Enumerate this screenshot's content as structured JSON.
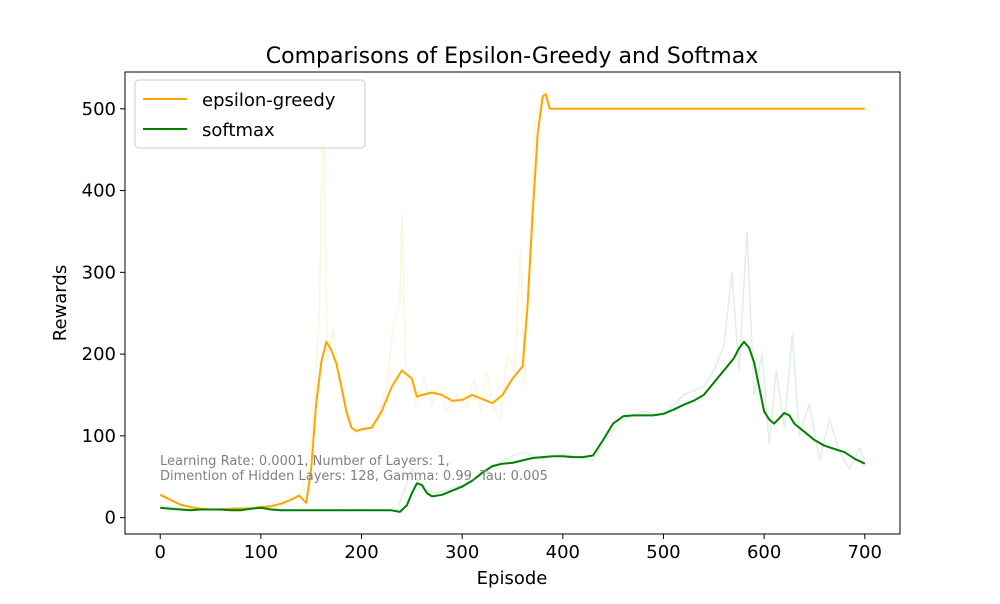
{
  "figure": {
    "title": "Comparisons of Epsilon-Greedy and Softmax",
    "annotation_line1": "Learning Rate: 0.0001, Number of Layers: 1,",
    "annotation_line2": "Dimention of Hidden Layers: 128, Gamma: 0.99, Tau: 0.005"
  },
  "chart_data": {
    "type": "line",
    "title": "Comparisons of Epsilon-Greedy and Softmax",
    "xlabel": "Episode",
    "ylabel": "Rewards",
    "xlim": [
      -35,
      735
    ],
    "ylim": [
      -20,
      545
    ],
    "xticks": [
      0,
      100,
      200,
      300,
      400,
      500,
      600,
      700
    ],
    "yticks": [
      0,
      100,
      200,
      300,
      400,
      500
    ],
    "grid": false,
    "legend_position": "upper-left",
    "colors": {
      "epsilon_greedy": "#ffa500",
      "softmax": "#008000"
    },
    "series": [
      {
        "name": "epsilon-greedy",
        "smoothed": [
          [
            0,
            28
          ],
          [
            10,
            22
          ],
          [
            20,
            16
          ],
          [
            30,
            13
          ],
          [
            40,
            11
          ],
          [
            50,
            10
          ],
          [
            60,
            10
          ],
          [
            70,
            11
          ],
          [
            80,
            11
          ],
          [
            90,
            11
          ],
          [
            100,
            13
          ],
          [
            110,
            14
          ],
          [
            120,
            17
          ],
          [
            130,
            22
          ],
          [
            138,
            27
          ],
          [
            145,
            18
          ],
          [
            150,
            60
          ],
          [
            155,
            140
          ],
          [
            160,
            190
          ],
          [
            165,
            215
          ],
          [
            170,
            205
          ],
          [
            175,
            188
          ],
          [
            180,
            160
          ],
          [
            185,
            130
          ],
          [
            190,
            110
          ],
          [
            195,
            106
          ],
          [
            200,
            108
          ],
          [
            210,
            110
          ],
          [
            220,
            130
          ],
          [
            230,
            160
          ],
          [
            240,
            180
          ],
          [
            250,
            170
          ],
          [
            255,
            148
          ],
          [
            260,
            150
          ],
          [
            270,
            153
          ],
          [
            280,
            150
          ],
          [
            290,
            143
          ],
          [
            300,
            144
          ],
          [
            310,
            150
          ],
          [
            320,
            145
          ],
          [
            330,
            140
          ],
          [
            340,
            150
          ],
          [
            350,
            170
          ],
          [
            360,
            185
          ],
          [
            365,
            260
          ],
          [
            370,
            370
          ],
          [
            375,
            470
          ],
          [
            380,
            515
          ],
          [
            383,
            518
          ],
          [
            387,
            500
          ],
          [
            395,
            500
          ],
          [
            500,
            500
          ],
          [
            600,
            500
          ],
          [
            700,
            500
          ]
        ],
        "raw": [
          [
            0,
            30
          ],
          [
            20,
            14
          ],
          [
            40,
            10
          ],
          [
            60,
            9
          ],
          [
            80,
            12
          ],
          [
            100,
            11
          ],
          [
            120,
            15
          ],
          [
            140,
            30
          ],
          [
            150,
            90
          ],
          [
            158,
            250
          ],
          [
            162,
            520
          ],
          [
            166,
            190
          ],
          [
            172,
            230
          ],
          [
            178,
            170
          ],
          [
            185,
            120
          ],
          [
            195,
            100
          ],
          [
            205,
            112
          ],
          [
            215,
            115
          ],
          [
            225,
            160
          ],
          [
            232,
            240
          ],
          [
            238,
            260
          ],
          [
            240,
            372
          ],
          [
            244,
            170
          ],
          [
            250,
            160
          ],
          [
            255,
            135
          ],
          [
            262,
            170
          ],
          [
            270,
            140
          ],
          [
            278,
            165
          ],
          [
            285,
            130
          ],
          [
            295,
            150
          ],
          [
            305,
            135
          ],
          [
            312,
            170
          ],
          [
            318,
            130
          ],
          [
            324,
            180
          ],
          [
            330,
            140
          ],
          [
            338,
            120
          ],
          [
            345,
            200
          ],
          [
            352,
            180
          ],
          [
            358,
            330
          ],
          [
            362,
            160
          ],
          [
            366,
            300
          ],
          [
            372,
            480
          ],
          [
            380,
            520
          ],
          [
            390,
            500
          ],
          [
            700,
            500
          ]
        ]
      },
      {
        "name": "softmax",
        "smoothed": [
          [
            0,
            12
          ],
          [
            10,
            11
          ],
          [
            20,
            10
          ],
          [
            30,
            9
          ],
          [
            40,
            10
          ],
          [
            50,
            10
          ],
          [
            60,
            10
          ],
          [
            70,
            9
          ],
          [
            80,
            9
          ],
          [
            90,
            11
          ],
          [
            100,
            12
          ],
          [
            110,
            10
          ],
          [
            120,
            9
          ],
          [
            130,
            9
          ],
          [
            140,
            9
          ],
          [
            150,
            9
          ],
          [
            170,
            9
          ],
          [
            200,
            9
          ],
          [
            230,
            9
          ],
          [
            238,
            7
          ],
          [
            245,
            15
          ],
          [
            250,
            30
          ],
          [
            255,
            42
          ],
          [
            260,
            40
          ],
          [
            265,
            30
          ],
          [
            270,
            26
          ],
          [
            280,
            28
          ],
          [
            290,
            33
          ],
          [
            300,
            38
          ],
          [
            310,
            45
          ],
          [
            320,
            55
          ],
          [
            330,
            63
          ],
          [
            340,
            66
          ],
          [
            350,
            67
          ],
          [
            360,
            70
          ],
          [
            370,
            73
          ],
          [
            380,
            74
          ],
          [
            390,
            75
          ],
          [
            400,
            75
          ],
          [
            410,
            74
          ],
          [
            420,
            74
          ],
          [
            430,
            76
          ],
          [
            440,
            95
          ],
          [
            450,
            115
          ],
          [
            460,
            124
          ],
          [
            470,
            125
          ],
          [
            480,
            125
          ],
          [
            490,
            125
          ],
          [
            500,
            127
          ],
          [
            510,
            132
          ],
          [
            520,
            138
          ],
          [
            530,
            143
          ],
          [
            540,
            150
          ],
          [
            550,
            165
          ],
          [
            560,
            180
          ],
          [
            570,
            195
          ],
          [
            575,
            207
          ],
          [
            580,
            215
          ],
          [
            585,
            208
          ],
          [
            590,
            190
          ],
          [
            595,
            160
          ],
          [
            600,
            130
          ],
          [
            605,
            120
          ],
          [
            610,
            115
          ],
          [
            620,
            128
          ],
          [
            625,
            125
          ],
          [
            630,
            115
          ],
          [
            640,
            105
          ],
          [
            650,
            95
          ],
          [
            660,
            88
          ],
          [
            670,
            84
          ],
          [
            680,
            80
          ],
          [
            690,
            72
          ],
          [
            700,
            66
          ]
        ],
        "raw": [
          [
            0,
            15
          ],
          [
            30,
            10
          ],
          [
            60,
            11
          ],
          [
            90,
            13
          ],
          [
            120,
            10
          ],
          [
            150,
            9
          ],
          [
            200,
            10
          ],
          [
            235,
            8
          ],
          [
            250,
            60
          ],
          [
            260,
            35
          ],
          [
            275,
            30
          ],
          [
            300,
            40
          ],
          [
            320,
            52
          ],
          [
            340,
            70
          ],
          [
            360,
            80
          ],
          [
            380,
            72
          ],
          [
            400,
            78
          ],
          [
            430,
            70
          ],
          [
            445,
            100
          ],
          [
            460,
            120
          ],
          [
            480,
            130
          ],
          [
            500,
            125
          ],
          [
            520,
            150
          ],
          [
            540,
            160
          ],
          [
            550,
            180
          ],
          [
            560,
            210
          ],
          [
            568,
            300
          ],
          [
            575,
            180
          ],
          [
            583,
            350
          ],
          [
            590,
            150
          ],
          [
            598,
            200
          ],
          [
            605,
            90
          ],
          [
            612,
            180
          ],
          [
            620,
            110
          ],
          [
            628,
            225
          ],
          [
            635,
            100
          ],
          [
            645,
            140
          ],
          [
            655,
            70
          ],
          [
            665,
            120
          ],
          [
            675,
            80
          ],
          [
            685,
            60
          ],
          [
            695,
            85
          ],
          [
            700,
            70
          ]
        ]
      }
    ]
  }
}
